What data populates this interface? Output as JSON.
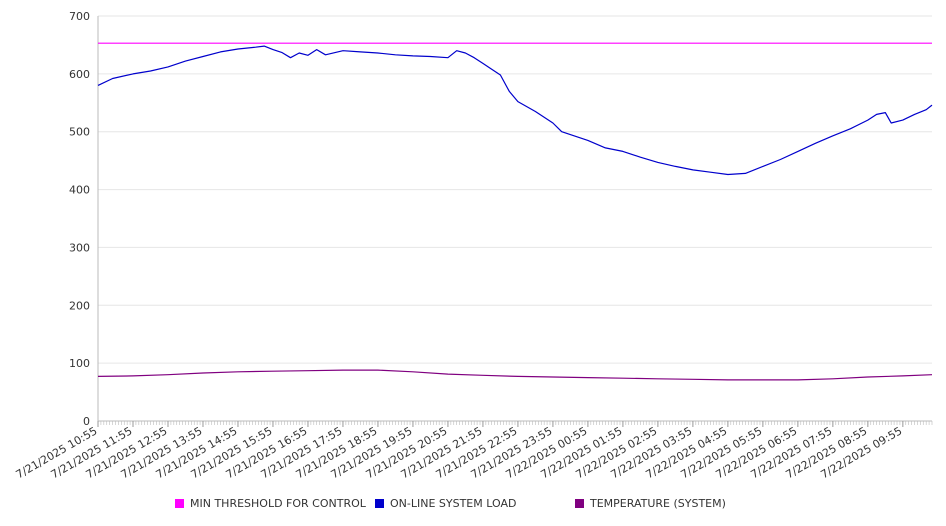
{
  "chart_data": {
    "type": "line",
    "title": "",
    "xlabel": "",
    "ylabel": "",
    "ylim": [
      0,
      700
    ],
    "yticks": [
      0,
      100,
      200,
      300,
      400,
      500,
      600,
      700
    ],
    "grid": true,
    "legend_position": "bottom",
    "x_start": "7/21/2025 10:55",
    "x_end": "7/22/2025 10:45",
    "x": [
      "7/21/2025 10:55",
      "7/21/2025 11:55",
      "7/21/2025 12:55",
      "7/21/2025 13:55",
      "7/21/2025 14:55",
      "7/21/2025 15:55",
      "7/21/2025 16:55",
      "7/21/2025 17:55",
      "7/21/2025 18:55",
      "7/21/2025 19:55",
      "7/21/2025 20:55",
      "7/21/2025 21:55",
      "7/21/2025 22:55",
      "7/21/2025 23:55",
      "7/22/2025 00:55",
      "7/22/2025 01:55",
      "7/22/2025 02:55",
      "7/22/2025 03:55",
      "7/22/2025 04:55",
      "7/22/2025 05:55",
      "7/22/2025 06:55",
      "7/22/2025 07:55",
      "7/22/2025 08:55",
      "7/22/2025 09:55"
    ],
    "series": [
      {
        "name": "MIN THRESHOLD FOR CONTROL",
        "color": "#ff00ff",
        "points": [
          [
            "7/21/2025 10:55",
            653
          ],
          [
            "7/22/2025 10:45",
            653
          ]
        ]
      },
      {
        "name": "ON-LINE SYSTEM LOAD",
        "color": "#0000cc",
        "points": [
          [
            "7/21/2025 10:55",
            580
          ],
          [
            "7/21/2025 11:20",
            592
          ],
          [
            "7/21/2025 11:55",
            600
          ],
          [
            "7/21/2025 12:25",
            605
          ],
          [
            "7/21/2025 12:55",
            612
          ],
          [
            "7/21/2025 13:25",
            622
          ],
          [
            "7/21/2025 13:55",
            630
          ],
          [
            "7/21/2025 14:25",
            638
          ],
          [
            "7/21/2025 14:55",
            643
          ],
          [
            "7/21/2025 15:25",
            646
          ],
          [
            "7/21/2025 15:40",
            648
          ],
          [
            "7/21/2025 15:55",
            642
          ],
          [
            "7/21/2025 16:10",
            637
          ],
          [
            "7/21/2025 16:25",
            628
          ],
          [
            "7/21/2025 16:40",
            636
          ],
          [
            "7/21/2025 16:55",
            632
          ],
          [
            "7/21/2025 17:10",
            642
          ],
          [
            "7/21/2025 17:25",
            633
          ],
          [
            "7/21/2025 17:55",
            640
          ],
          [
            "7/21/2025 18:25",
            638
          ],
          [
            "7/21/2025 18:55",
            636
          ],
          [
            "7/21/2025 19:25",
            633
          ],
          [
            "7/21/2025 19:55",
            631
          ],
          [
            "7/21/2025 20:25",
            630
          ],
          [
            "7/21/2025 20:55",
            628
          ],
          [
            "7/21/2025 21:10",
            640
          ],
          [
            "7/21/2025 21:25",
            636
          ],
          [
            "7/21/2025 21:40",
            628
          ],
          [
            "7/21/2025 21:55",
            618
          ],
          [
            "7/21/2025 22:10",
            608
          ],
          [
            "7/21/2025 22:25",
            598
          ],
          [
            "7/21/2025 22:40",
            570
          ],
          [
            "7/21/2025 22:55",
            552
          ],
          [
            "7/21/2025 23:25",
            535
          ],
          [
            "7/21/2025 23:55",
            515
          ],
          [
            "7/22/2025 00:10",
            500
          ],
          [
            "7/22/2025 00:55",
            485
          ],
          [
            "7/22/2025 01:25",
            472
          ],
          [
            "7/22/2025 01:55",
            466
          ],
          [
            "7/22/2025 02:25",
            456
          ],
          [
            "7/22/2025 02:55",
            447
          ],
          [
            "7/22/2025 03:25",
            440
          ],
          [
            "7/22/2025 03:55",
            434
          ],
          [
            "7/22/2025 04:25",
            430
          ],
          [
            "7/22/2025 04:55",
            426
          ],
          [
            "7/22/2025 05:25",
            428
          ],
          [
            "7/22/2025 05:55",
            440
          ],
          [
            "7/22/2025 06:25",
            452
          ],
          [
            "7/22/2025 06:55",
            466
          ],
          [
            "7/22/2025 07:25",
            480
          ],
          [
            "7/22/2025 07:55",
            493
          ],
          [
            "7/22/2025 08:25",
            505
          ],
          [
            "7/22/2025 08:55",
            520
          ],
          [
            "7/22/2025 09:10",
            530
          ],
          [
            "7/22/2025 09:25",
            533
          ],
          [
            "7/22/2025 09:35",
            515
          ],
          [
            "7/22/2025 09:55",
            520
          ],
          [
            "7/22/2025 10:15",
            530
          ],
          [
            "7/22/2025 10:35",
            538
          ],
          [
            "7/22/2025 10:45",
            546
          ]
        ]
      },
      {
        "name": "TEMPERATURE (SYSTEM)",
        "color": "#800080",
        "points": [
          [
            "7/21/2025 10:55",
            77
          ],
          [
            "7/21/2025 11:55",
            78
          ],
          [
            "7/21/2025 12:55",
            80
          ],
          [
            "7/21/2025 13:55",
            83
          ],
          [
            "7/21/2025 14:55",
            85
          ],
          [
            "7/21/2025 15:55",
            86
          ],
          [
            "7/21/2025 16:55",
            87
          ],
          [
            "7/21/2025 17:55",
            88
          ],
          [
            "7/21/2025 18:55",
            88
          ],
          [
            "7/21/2025 19:55",
            85
          ],
          [
            "7/21/2025 20:55",
            81
          ],
          [
            "7/21/2025 21:55",
            79
          ],
          [
            "7/21/2025 22:55",
            77
          ],
          [
            "7/21/2025 23:55",
            76
          ],
          [
            "7/22/2025 00:55",
            75
          ],
          [
            "7/22/2025 01:55",
            74
          ],
          [
            "7/22/2025 02:55",
            73
          ],
          [
            "7/22/2025 03:55",
            72
          ],
          [
            "7/22/2025 04:55",
            71
          ],
          [
            "7/22/2025 05:55",
            71
          ],
          [
            "7/22/2025 06:55",
            71
          ],
          [
            "7/22/2025 07:55",
            73
          ],
          [
            "7/22/2025 08:55",
            76
          ],
          [
            "7/22/2025 09:55",
            78
          ],
          [
            "7/22/2025 10:45",
            80
          ]
        ]
      }
    ]
  }
}
